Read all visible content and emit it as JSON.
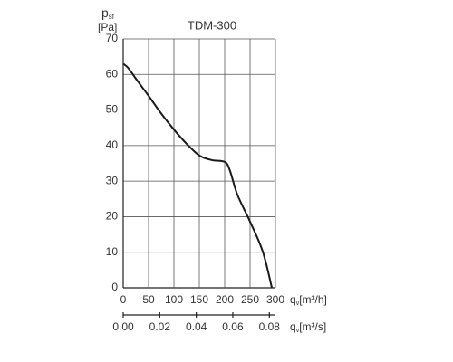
{
  "chart_data": {
    "type": "line",
    "title": "TDM-300",
    "y_label": {
      "main": "p",
      "sub": "sf",
      "unit": "[Pa]"
    },
    "x_label": {
      "main": "q",
      "sub": "v",
      "unit": "[m³/h]"
    },
    "x2_label": {
      "main": "q",
      "sub": "v",
      "unit": "[m³/s]"
    },
    "series": [
      {
        "color": "#1a1a1a",
        "x": [
          0,
          10,
          25,
          50,
          75,
          100,
          125,
          150,
          175,
          200,
          210,
          225,
          250,
          275,
          293
        ],
        "values": [
          63,
          61.8,
          58.8,
          54,
          49,
          44.5,
          40.5,
          37.2,
          35.9,
          35.4,
          33.1,
          26.2,
          18.6,
          10.2,
          0
        ]
      }
    ],
    "xlim": [
      0,
      300
    ],
    "xticks": [
      0,
      50,
      100,
      150,
      200,
      250,
      300
    ],
    "ylim": [
      0,
      70
    ],
    "yticks": [
      0,
      10,
      20,
      30,
      40,
      50,
      60,
      70
    ],
    "x2lim": [
      0,
      0.08333
    ],
    "x2ticks": [
      {
        "value": 0,
        "label": "0.00"
      },
      0.02,
      0.04,
      0.06,
      0.08
    ],
    "grid": true
  }
}
